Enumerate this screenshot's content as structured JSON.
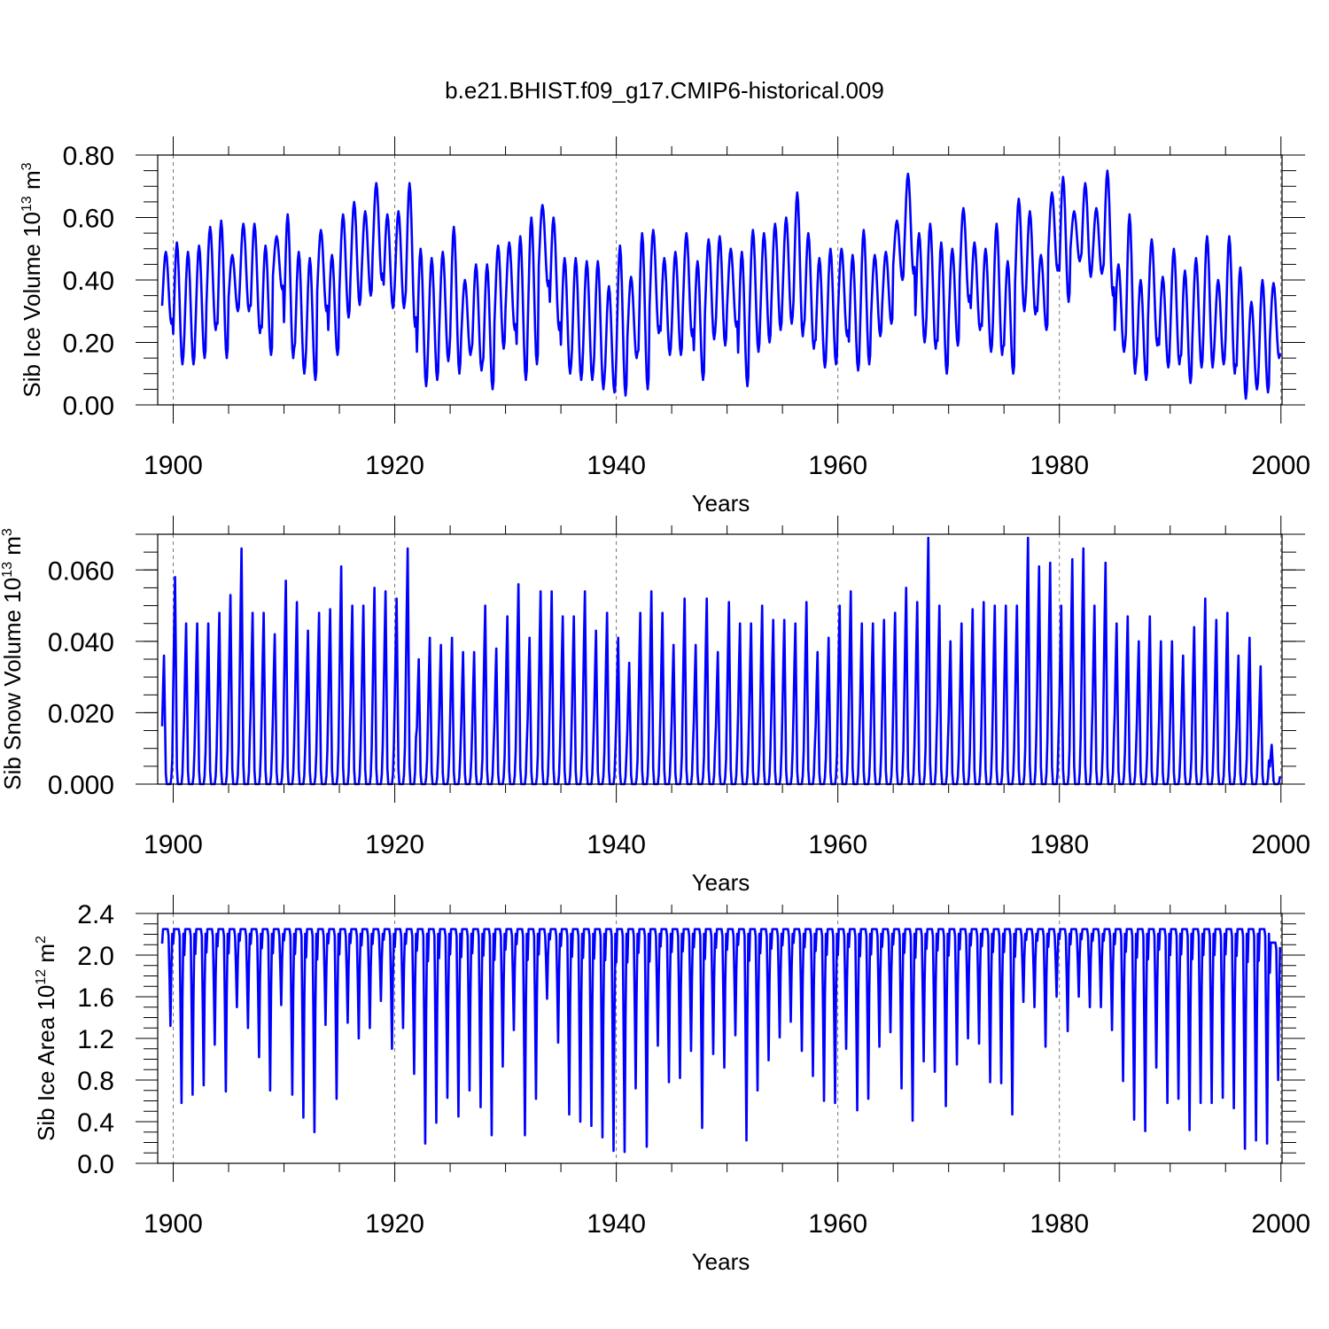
{
  "figure_title": "b.e21.BHIST.f09_g17.CMIP6-historical.009",
  "line_color": "#0000ff",
  "grid_color": "#777777",
  "chart_data": [
    {
      "type": "line",
      "ylabel_text": "Sib Ice Volume 10",
      "ylabel_exp": "13",
      "ylabel_unit": "m",
      "ylabel_unit_exp": "3",
      "xlabel": "Years",
      "xlim": [
        1898.6,
        2000.1
      ],
      "ylim": [
        0,
        0.8
      ],
      "xticks": [
        1900,
        1920,
        1940,
        1960,
        1980,
        2000
      ],
      "yticks": [
        0,
        0.2,
        0.4,
        0.6,
        0.8
      ],
      "ytick_labels": [
        "0.00",
        "0.20",
        "0.40",
        "0.60",
        "0.80"
      ],
      "grid": "vertical dashed at major x ticks",
      "series": [
        {
          "name": "Sib Ice Volume",
          "x_start": 1899,
          "annual_max": [
            0.49,
            0.52,
            0.49,
            0.51,
            0.57,
            0.59,
            0.48,
            0.58,
            0.58,
            0.51,
            0.54,
            0.61,
            0.49,
            0.47,
            0.56,
            0.48,
            0.61,
            0.65,
            0.62,
            0.71,
            0.61,
            0.62,
            0.71,
            0.5,
            0.47,
            0.49,
            0.57,
            0.4,
            0.45,
            0.45,
            0.51,
            0.52,
            0.54,
            0.6,
            0.64,
            0.6,
            0.47,
            0.47,
            0.46,
            0.46,
            0.38,
            0.51,
            0.41,
            0.55,
            0.56,
            0.47,
            0.49,
            0.55,
            0.46,
            0.53,
            0.54,
            0.5,
            0.49,
            0.56,
            0.55,
            0.58,
            0.6,
            0.68,
            0.55,
            0.47,
            0.5,
            0.5,
            0.48,
            0.56,
            0.48,
            0.49,
            0.59,
            0.74,
            0.55,
            0.58,
            0.52,
            0.5,
            0.63,
            0.52,
            0.5,
            0.58,
            0.46,
            0.66,
            0.62,
            0.48,
            0.68,
            0.73,
            0.62,
            0.71,
            0.63,
            0.75,
            0.45,
            0.61,
            0.4,
            0.53,
            0.41,
            0.5,
            0.43,
            0.47,
            0.54,
            0.4,
            0.54,
            0.44,
            0.33,
            0.4,
            0.39
          ],
          "annual_min": [
            0.26,
            0.13,
            0.13,
            0.15,
            0.24,
            0.15,
            0.3,
            0.3,
            0.23,
            0.16,
            0.37,
            0.15,
            0.1,
            0.08,
            0.3,
            0.16,
            0.28,
            0.32,
            0.35,
            0.4,
            0.31,
            0.31,
            0.25,
            0.06,
            0.08,
            0.14,
            0.1,
            0.16,
            0.11,
            0.05,
            0.18,
            0.24,
            0.08,
            0.13,
            0.38,
            0.24,
            0.1,
            0.08,
            0.08,
            0.05,
            0.04,
            0.03,
            0.15,
            0.05,
            0.23,
            0.16,
            0.16,
            0.22,
            0.08,
            0.21,
            0.19,
            0.25,
            0.06,
            0.17,
            0.2,
            0.24,
            0.26,
            0.22,
            0.18,
            0.12,
            0.13,
            0.22,
            0.11,
            0.13,
            0.22,
            0.26,
            0.4,
            0.42,
            0.2,
            0.18,
            0.1,
            0.19,
            0.33,
            0.24,
            0.17,
            0.16,
            0.1,
            0.3,
            0.29,
            0.24,
            0.43,
            0.33,
            0.46,
            0.41,
            0.42,
            0.35,
            0.17,
            0.1,
            0.08,
            0.19,
            0.12,
            0.13,
            0.07,
            0.12,
            0.12,
            0.13,
            0.1,
            0.02,
            0.05,
            0.04,
            0.15
          ]
        }
      ]
    },
    {
      "type": "line",
      "ylabel_text": "Sib Snow Volume 10",
      "ylabel_exp": "13",
      "ylabel_unit": "m",
      "ylabel_unit_exp": "3",
      "xlabel": "Years",
      "xlim": [
        1898.6,
        2000.1
      ],
      "ylim": [
        0,
        0.07
      ],
      "xticks": [
        1900,
        1920,
        1940,
        1960,
        1980,
        2000
      ],
      "yticks": [
        0,
        0.02,
        0.04,
        0.06
      ],
      "ytick_labels": [
        "0.000",
        "0.020",
        "0.040",
        "0.060"
      ],
      "grid": "vertical dashed at major x ticks",
      "series": [
        {
          "name": "Sib Snow Volume",
          "x_start": 1899,
          "annual_max": [
            0.036,
            0.058,
            0.045,
            0.045,
            0.045,
            0.048,
            0.053,
            0.066,
            0.048,
            0.048,
            0.042,
            0.057,
            0.051,
            0.043,
            0.048,
            0.049,
            0.061,
            0.05,
            0.05,
            0.055,
            0.054,
            0.052,
            0.066,
            0.035,
            0.041,
            0.039,
            0.041,
            0.037,
            0.037,
            0.05,
            0.038,
            0.047,
            0.056,
            0.041,
            0.054,
            0.054,
            0.047,
            0.047,
            0.054,
            0.043,
            0.048,
            0.041,
            0.034,
            0.048,
            0.054,
            0.048,
            0.039,
            0.052,
            0.039,
            0.052,
            0.037,
            0.051,
            0.045,
            0.045,
            0.05,
            0.046,
            0.046,
            0.045,
            0.051,
            0.037,
            0.041,
            0.05,
            0.054,
            0.045,
            0.045,
            0.046,
            0.048,
            0.055,
            0.051,
            0.069,
            0.05,
            0.04,
            0.045,
            0.049,
            0.051,
            0.05,
            0.05,
            0.05,
            0.069,
            0.061,
            0.062,
            0.05,
            0.063,
            0.066,
            0.05,
            0.062,
            0.045,
            0.047,
            0.04,
            0.047,
            0.04,
            0.04,
            0.036,
            0.044,
            0.052,
            0.046,
            0.048,
            0.036,
            0.041,
            0.033,
            0.011
          ],
          "annual_min": [
            0,
            0,
            0,
            0,
            0,
            0,
            0,
            0,
            0,
            0,
            0,
            0,
            0,
            0,
            0,
            0,
            0,
            0,
            0,
            0,
            0,
            0,
            0,
            0,
            0,
            0,
            0,
            0,
            0,
            0,
            0,
            0,
            0,
            0,
            0,
            0,
            0,
            0,
            0,
            0,
            0,
            0,
            0,
            0,
            0,
            0,
            0,
            0,
            0,
            0,
            0,
            0,
            0,
            0,
            0,
            0,
            0,
            0,
            0,
            0,
            0,
            0,
            0,
            0,
            0,
            0,
            0,
            0,
            0,
            0,
            0,
            0,
            0,
            0,
            0,
            0,
            0,
            0,
            0,
            0,
            0,
            0,
            0,
            0,
            0,
            0,
            0,
            0,
            0,
            0,
            0,
            0,
            0,
            0,
            0,
            0,
            0,
            0,
            0,
            0,
            0
          ]
        }
      ]
    },
    {
      "type": "line",
      "ylabel_text": "Sib Ice Area 10",
      "ylabel_exp": "12",
      "ylabel_unit": "m",
      "ylabel_unit_exp": "2",
      "xlabel": "Years",
      "xlim": [
        1898.6,
        2000.1
      ],
      "ylim": [
        0,
        2.4
      ],
      "xticks": [
        1900,
        1920,
        1940,
        1960,
        1980,
        2000
      ],
      "yticks": [
        0,
        0.4,
        0.8,
        1.2,
        1.6,
        2.0,
        2.4
      ],
      "ytick_labels": [
        "0.0",
        "0.4",
        "0.8",
        "1.2",
        "1.6",
        "2.0",
        "2.4"
      ],
      "grid": "vertical dashed at major x ticks",
      "series": [
        {
          "name": "Sib Ice Area",
          "x_start": 1899,
          "annual_max": [
            2.25,
            2.25,
            2.25,
            2.25,
            2.25,
            2.25,
            2.25,
            2.25,
            2.25,
            2.25,
            2.25,
            2.25,
            2.25,
            2.25,
            2.25,
            2.25,
            2.25,
            2.25,
            2.25,
            2.25,
            2.25,
            2.25,
            2.25,
            2.25,
            2.25,
            2.25,
            2.25,
            2.25,
            2.25,
            2.25,
            2.25,
            2.25,
            2.25,
            2.25,
            2.25,
            2.25,
            2.25,
            2.25,
            2.25,
            2.25,
            2.25,
            2.25,
            2.25,
            2.25,
            2.25,
            2.25,
            2.25,
            2.25,
            2.25,
            2.25,
            2.25,
            2.25,
            2.25,
            2.25,
            2.25,
            2.25,
            2.25,
            2.25,
            2.25,
            2.25,
            2.25,
            2.25,
            2.25,
            2.25,
            2.25,
            2.25,
            2.25,
            2.25,
            2.25,
            2.25,
            2.25,
            2.25,
            2.25,
            2.25,
            2.25,
            2.25,
            2.25,
            2.25,
            2.25,
            2.25,
            2.25,
            2.25,
            2.25,
            2.25,
            2.25,
            2.25,
            2.25,
            2.25,
            2.25,
            2.25,
            2.25,
            2.25,
            2.25,
            2.25,
            2.25,
            2.25,
            2.25,
            2.25,
            2.25,
            2.25,
            2.12
          ],
          "annual_min": [
            1.32,
            0.58,
            0.66,
            0.75,
            1.14,
            0.69,
            1.5,
            1.3,
            1.02,
            0.7,
            1.52,
            0.66,
            0.44,
            0.3,
            1.33,
            0.62,
            1.35,
            1.2,
            1.3,
            1.56,
            1.1,
            1.3,
            0.86,
            0.19,
            0.39,
            0.63,
            0.45,
            0.7,
            0.54,
            0.27,
            0.93,
            1.28,
            0.27,
            0.62,
            1.58,
            1.16,
            0.47,
            0.4,
            0.36,
            0.25,
            0.12,
            0.11,
            0.72,
            0.16,
            1.13,
            0.78,
            0.82,
            1.08,
            0.34,
            1.05,
            0.92,
            1.23,
            0.22,
            0.7,
            0.99,
            1.21,
            1.36,
            1.08,
            0.84,
            0.6,
            0.58,
            1.1,
            0.51,
            0.62,
            1.12,
            1.26,
            0.72,
            0.41,
            0.98,
            0.88,
            0.55,
            0.95,
            1.2,
            1.15,
            0.78,
            0.77,
            0.47,
            1.55,
            1.5,
            1.12,
            1.6,
            1.27,
            1.6,
            1.5,
            1.5,
            1.28,
            0.79,
            0.42,
            0.31,
            0.92,
            0.58,
            0.62,
            0.32,
            0.58,
            0.58,
            0.63,
            0.53,
            0.14,
            0.22,
            0.19,
            0.8
          ]
        }
      ]
    }
  ]
}
